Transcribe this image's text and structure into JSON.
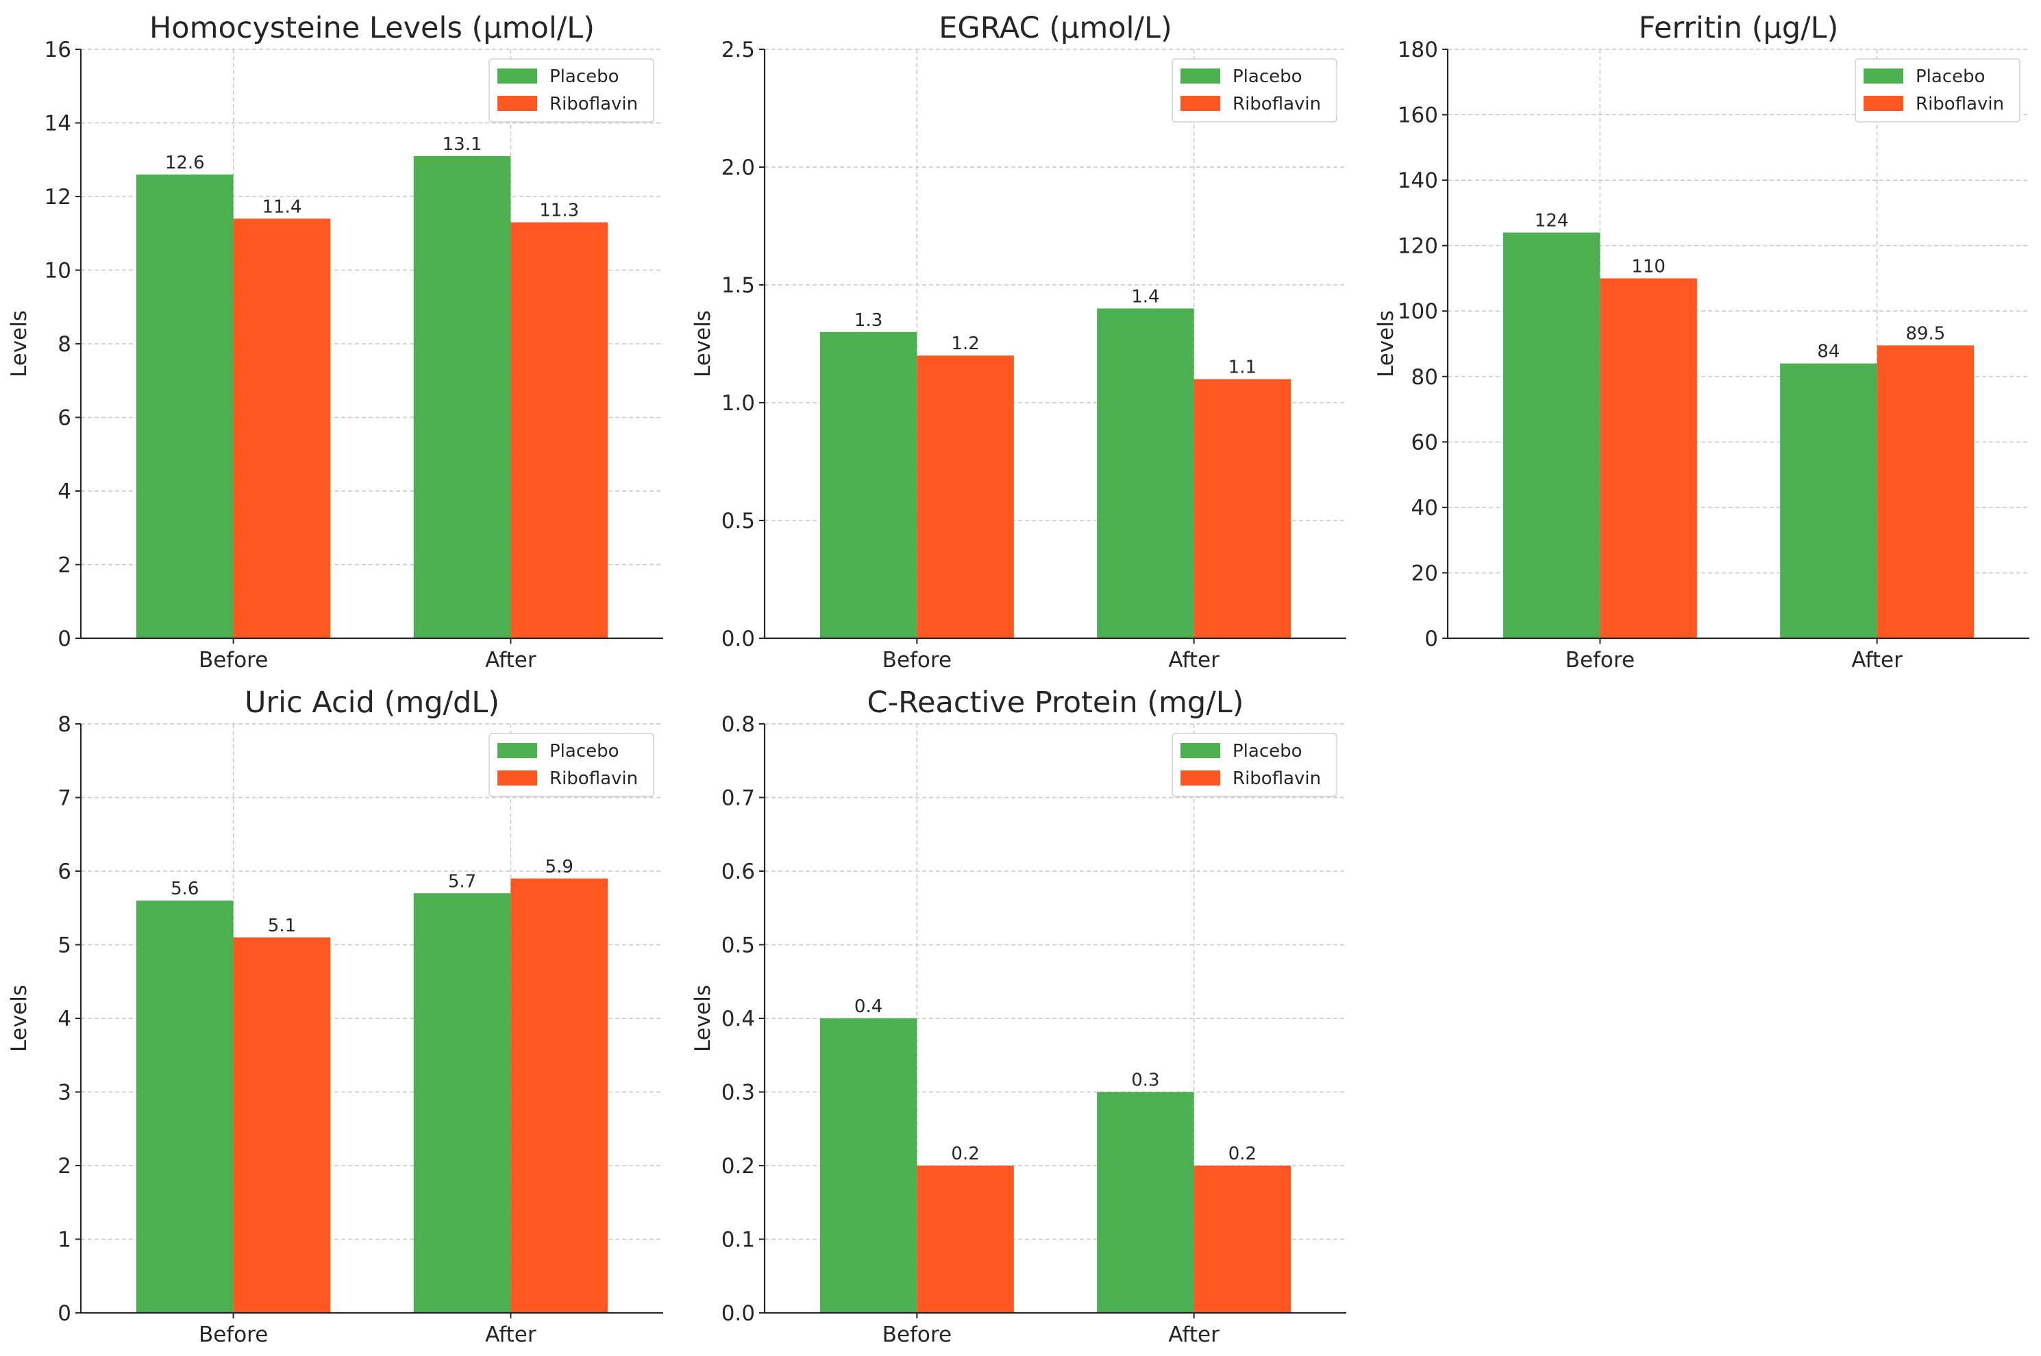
{
  "colors": {
    "placebo": "#4caf50",
    "riboflavin": "#ff5722"
  },
  "chart_data": [
    {
      "type": "bar",
      "title": "Homocysteine Levels (µmol/L)",
      "categories": [
        "Before",
        "After"
      ],
      "series": [
        {
          "name": "Placebo",
          "values": [
            12.6,
            13.1
          ],
          "labels": [
            "12.6",
            "13.1"
          ]
        },
        {
          "name": "Riboflavin",
          "values": [
            11.4,
            11.3
          ],
          "labels": [
            "11.4",
            "11.3"
          ]
        }
      ],
      "xlabel": "",
      "ylabel": "Levels",
      "ylim": [
        0,
        16
      ],
      "yticks": [
        0,
        2,
        4,
        6,
        8,
        10,
        12,
        14,
        16
      ],
      "ytick_labels": [
        "0",
        "2",
        "4",
        "6",
        "8",
        "10",
        "12",
        "14",
        "16"
      ],
      "grid": true,
      "legend": "top-right"
    },
    {
      "type": "bar",
      "title": "EGRAC (µmol/L)",
      "categories": [
        "Before",
        "After"
      ],
      "series": [
        {
          "name": "Placebo",
          "values": [
            1.3,
            1.4
          ],
          "labels": [
            "1.3",
            "1.4"
          ]
        },
        {
          "name": "Riboflavin",
          "values": [
            1.2,
            1.1
          ],
          "labels": [
            "1.2",
            "1.1"
          ]
        }
      ],
      "xlabel": "",
      "ylabel": "Levels",
      "ylim": [
        0,
        2.5
      ],
      "yticks": [
        0,
        0.5,
        1,
        1.5,
        2,
        2.5
      ],
      "ytick_labels": [
        "0.0",
        "0.5",
        "1.0",
        "1.5",
        "2.0",
        "2.5"
      ],
      "grid": true,
      "legend": "top-right"
    },
    {
      "type": "bar",
      "title": "Ferritin (µg/L)",
      "categories": [
        "Before",
        "After"
      ],
      "series": [
        {
          "name": "Placebo",
          "values": [
            124,
            84
          ],
          "labels": [
            "124",
            "84"
          ]
        },
        {
          "name": "Riboflavin",
          "values": [
            110,
            89.5
          ],
          "labels": [
            "110",
            "89.5"
          ]
        }
      ],
      "xlabel": "",
      "ylabel": "Levels",
      "ylim": [
        0,
        180
      ],
      "yticks": [
        0,
        20,
        40,
        60,
        80,
        100,
        120,
        140,
        160,
        180
      ],
      "ytick_labels": [
        "0",
        "20",
        "40",
        "60",
        "80",
        "100",
        "120",
        "140",
        "160",
        "180"
      ],
      "grid": true,
      "legend": "top-right"
    },
    {
      "type": "bar",
      "title": "Uric Acid (mg/dL)",
      "categories": [
        "Before",
        "After"
      ],
      "series": [
        {
          "name": "Placebo",
          "values": [
            5.6,
            5.7
          ],
          "labels": [
            "5.6",
            "5.7"
          ]
        },
        {
          "name": "Riboflavin",
          "values": [
            5.1,
            5.9
          ],
          "labels": [
            "5.1",
            "5.9"
          ]
        }
      ],
      "xlabel": "",
      "ylabel": "Levels",
      "ylim": [
        0,
        8
      ],
      "yticks": [
        0,
        1,
        2,
        3,
        4,
        5,
        6,
        7,
        8
      ],
      "ytick_labels": [
        "0",
        "1",
        "2",
        "3",
        "4",
        "5",
        "6",
        "7",
        "8"
      ],
      "grid": true,
      "legend": "top-right"
    },
    {
      "type": "bar",
      "title": "C-Reactive Protein (mg/L)",
      "categories": [
        "Before",
        "After"
      ],
      "series": [
        {
          "name": "Placebo",
          "values": [
            0.4,
            0.3
          ],
          "labels": [
            "0.4",
            "0.3"
          ]
        },
        {
          "name": "Riboflavin",
          "values": [
            0.2,
            0.2
          ],
          "labels": [
            "0.2",
            "0.2"
          ]
        }
      ],
      "xlabel": "",
      "ylabel": "Levels",
      "ylim": [
        0,
        0.8
      ],
      "yticks": [
        0,
        0.1,
        0.2,
        0.3,
        0.4,
        0.5,
        0.6,
        0.7,
        0.8
      ],
      "ytick_labels": [
        "0.0",
        "0.1",
        "0.2",
        "0.3",
        "0.4",
        "0.5",
        "0.6",
        "0.7",
        "0.8"
      ],
      "grid": true,
      "legend": "top-right"
    }
  ]
}
